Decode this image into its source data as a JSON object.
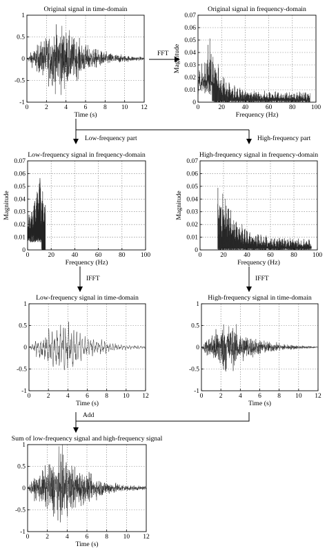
{
  "flow_labels": {
    "fft": "FFT",
    "low_part": "Low-frequency part",
    "high_part": "High-frequency part",
    "ifft_left": "IFFT",
    "ifft_right": "IFFT",
    "add": "Add"
  },
  "chart_data": [
    {
      "id": "orig_time",
      "type": "line",
      "title": "Original signal in time-domain",
      "xlabel": "Time (s)",
      "ylabel": "",
      "xlim": [
        0,
        12
      ],
      "ylim": [
        -1,
        1
      ],
      "xticks": [
        "0",
        "2",
        "4",
        "6",
        "8",
        "10",
        "12"
      ],
      "yticks": [
        "-1",
        "-0.5",
        "0",
        "0.5",
        "1"
      ],
      "grid": true,
      "signal": {
        "kind": "time",
        "duration": 12,
        "peak_amplitude": 0.95,
        "peak_time": 3.5,
        "band": "full"
      }
    },
    {
      "id": "orig_freq",
      "type": "line",
      "title": "Original signal in frequency-domain",
      "xlabel": "Frequency (Hz)",
      "ylabel": "Magnitude",
      "xlim": [
        0,
        100
      ],
      "ylim": [
        0,
        0.07
      ],
      "xticks": [
        "0",
        "20",
        "40",
        "60",
        "80",
        "100"
      ],
      "yticks": [
        "0",
        "0.01",
        "0.02",
        "0.03",
        "0.04",
        "0.05",
        "0.06",
        "0.07"
      ],
      "grid": true,
      "signal": {
        "kind": "freq",
        "f_min": 0,
        "f_max": 95,
        "peak_magnitude": 0.06,
        "peak_freq": 10
      }
    },
    {
      "id": "low_freq",
      "type": "line",
      "title": "Low-frequency signal in frequency-domain",
      "xlabel": "Frequency (Hz)",
      "ylabel": "Magnitude",
      "xlim": [
        0,
        100
      ],
      "ylim": [
        0,
        0.07
      ],
      "xticks": [
        "0",
        "20",
        "40",
        "60",
        "80",
        "100"
      ],
      "yticks": [
        "0",
        "0.01",
        "0.02",
        "0.03",
        "0.04",
        "0.05",
        "0.06",
        "0.07"
      ],
      "grid": true,
      "signal": {
        "kind": "freq",
        "f_min": 0,
        "f_max": 15,
        "peak_magnitude": 0.06,
        "peak_freq": 10
      }
    },
    {
      "id": "high_freq",
      "type": "line",
      "title": "High-frequency signal in frequency-domain",
      "xlabel": "Frequency (Hz)",
      "ylabel": "Magnitude",
      "xlim": [
        0,
        100
      ],
      "ylim": [
        0,
        0.07
      ],
      "xticks": [
        "0",
        "20",
        "40",
        "60",
        "80",
        "100"
      ],
      "yticks": [
        "0",
        "0.01",
        "0.02",
        "0.03",
        "0.04",
        "0.05",
        "0.06",
        "0.07"
      ],
      "grid": true,
      "signal": {
        "kind": "freq",
        "f_min": 15,
        "f_max": 95,
        "peak_magnitude": 0.058,
        "peak_freq": 16
      }
    },
    {
      "id": "low_time",
      "type": "line",
      "title": "Low-frequency signal in time-domain",
      "xlabel": "Time (s)",
      "ylabel": "",
      "xlim": [
        0,
        12
      ],
      "ylim": [
        -1,
        1
      ],
      "xticks": [
        "0",
        "2",
        "4",
        "6",
        "8",
        "10",
        "12"
      ],
      "yticks": [
        "-1",
        "-0.5",
        "0",
        "0.5",
        "1"
      ],
      "grid": true,
      "signal": {
        "kind": "time",
        "duration": 12,
        "peak_amplitude": 0.6,
        "peak_time": 3.5,
        "band": "low"
      }
    },
    {
      "id": "high_time",
      "type": "line",
      "title": "High-frequency signal in time-domain",
      "xlabel": "Time (s)",
      "ylabel": "",
      "xlim": [
        0,
        12
      ],
      "ylim": [
        -1,
        1
      ],
      "xticks": [
        "0",
        "2",
        "4",
        "6",
        "8",
        "10",
        "12"
      ],
      "yticks": [
        "-1",
        "-0.5",
        "0",
        "0.5",
        "1"
      ],
      "grid": true,
      "signal": {
        "kind": "time",
        "duration": 12,
        "peak_amplitude": 0.75,
        "peak_time": 2.5,
        "band": "high"
      }
    },
    {
      "id": "sum_time",
      "type": "line",
      "title": "Sum of low-frequency signal and  high-frequency signal",
      "xlabel": "Time (s)",
      "ylabel": "",
      "xlim": [
        0,
        12
      ],
      "ylim": [
        -1,
        1
      ],
      "xticks": [
        "0",
        "2",
        "4",
        "6",
        "8",
        "10",
        "12"
      ],
      "yticks": [
        "-1",
        "-0.5",
        "0",
        "0.5",
        "1"
      ],
      "grid": true,
      "signal": {
        "kind": "time",
        "duration": 12,
        "peak_amplitude": 0.95,
        "peak_time": 3.5,
        "band": "full"
      }
    }
  ]
}
